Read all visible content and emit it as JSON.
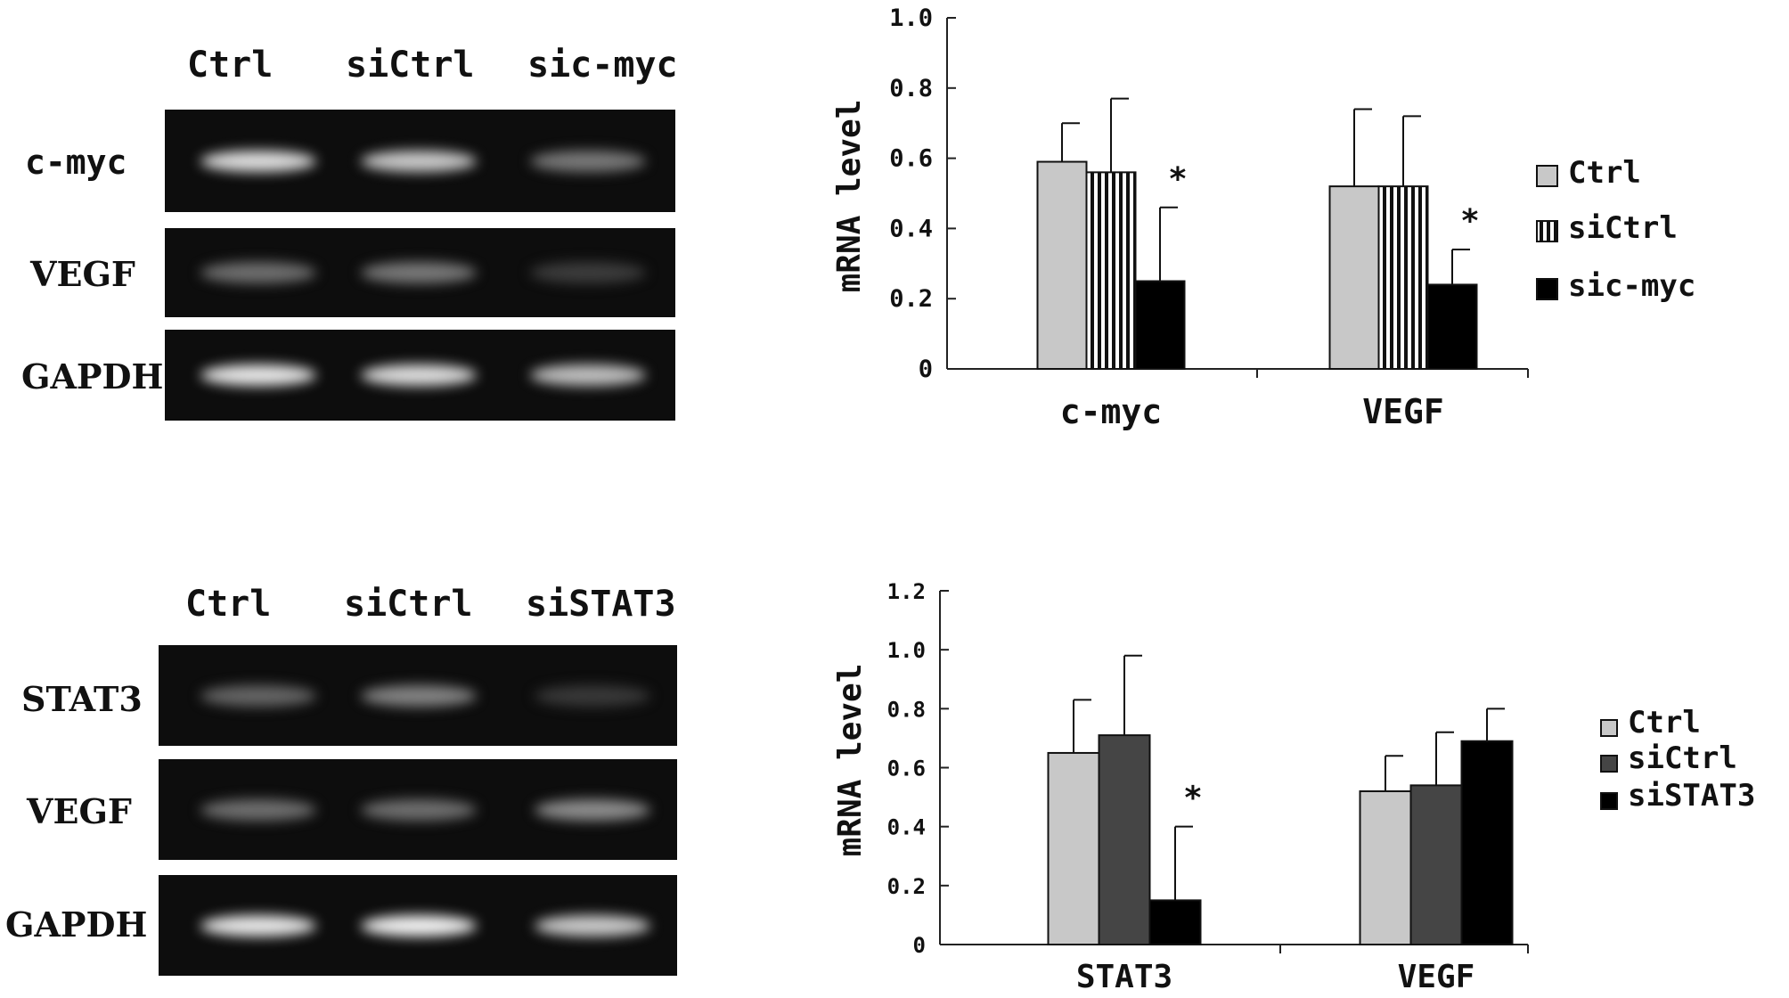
{
  "gels": [
    {
      "lanes": [
        "Ctrl",
        "siCtrl",
        "sic-myc"
      ],
      "rows": [
        {
          "label": "c-myc",
          "intensities": [
            0.9,
            0.8,
            0.4
          ]
        },
        {
          "label": "VEGF",
          "intensities": [
            0.35,
            0.4,
            0.1
          ]
        },
        {
          "label": "GAPDH",
          "intensities": [
            0.95,
            0.9,
            0.75
          ]
        }
      ]
    },
    {
      "lanes": [
        "Ctrl",
        "siCtrl",
        "siSTAT3"
      ],
      "rows": [
        {
          "label": "STAT3",
          "intensities": [
            0.3,
            0.45,
            0.08
          ]
        },
        {
          "label": "VEGF",
          "intensities": [
            0.35,
            0.35,
            0.5
          ]
        },
        {
          "label": "GAPDH",
          "intensities": [
            0.95,
            1.0,
            0.8
          ]
        }
      ]
    }
  ],
  "chart_data": [
    {
      "type": "bar",
      "ylabel": "mRNA level",
      "ylim": [
        0,
        1.0
      ],
      "yticks": [
        "0",
        "0.2",
        "0.4",
        "0.6",
        "0.8",
        "1.0"
      ],
      "categories": [
        "c-myc",
        "VEGF"
      ],
      "series": [
        {
          "name": "Ctrl",
          "values": [
            0.59,
            0.52
          ],
          "errors": [
            0.11,
            0.22
          ],
          "color": "#c8c8c8",
          "pattern": "solid"
        },
        {
          "name": "siCtrl",
          "values": [
            0.56,
            0.52
          ],
          "errors": [
            0.21,
            0.2
          ],
          "color": "#ffffff",
          "pattern": "vstripes"
        },
        {
          "name": "sic-myc",
          "values": [
            0.25,
            0.24
          ],
          "errors": [
            0.21,
            0.1
          ],
          "color": "#000000",
          "pattern": "solid"
        }
      ],
      "annotations": [
        {
          "category": 0,
          "series": 2,
          "text": "*"
        },
        {
          "category": 1,
          "series": 2,
          "text": "*"
        }
      ],
      "legend_position": "right",
      "grid": false
    },
    {
      "type": "bar",
      "ylabel": "mRNA level",
      "ylim": [
        0,
        1.2
      ],
      "yticks": [
        "0",
        "0.2",
        "0.4",
        "0.6",
        "0.8",
        "1.0",
        "1.2"
      ],
      "categories": [
        "STAT3",
        "VEGF"
      ],
      "series": [
        {
          "name": "Ctrl",
          "values": [
            0.65,
            0.52
          ],
          "errors": [
            0.18,
            0.12
          ],
          "color": "#c8c8c8",
          "pattern": "solid"
        },
        {
          "name": "siCtrl",
          "values": [
            0.71,
            0.54
          ],
          "errors": [
            0.27,
            0.18
          ],
          "color": "#454545",
          "pattern": "solid"
        },
        {
          "name": "siSTAT3",
          "values": [
            0.15,
            0.69
          ],
          "errors": [
            0.25,
            0.11
          ],
          "color": "#000000",
          "pattern": "solid"
        }
      ],
      "annotations": [
        {
          "category": 0,
          "series": 2,
          "text": "*"
        }
      ],
      "legend_position": "right",
      "grid": false
    }
  ]
}
